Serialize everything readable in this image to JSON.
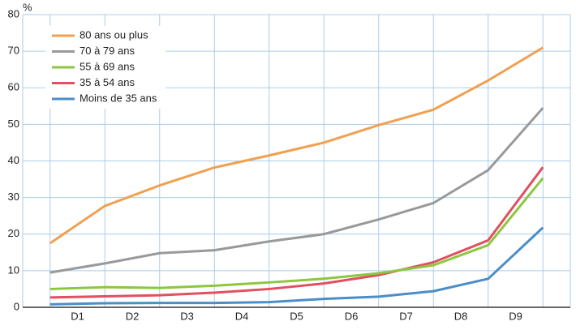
{
  "chart_data": {
    "type": "line",
    "unit": "%",
    "x": [
      0,
      1,
      2,
      3,
      4,
      5,
      6,
      7,
      8,
      9
    ],
    "xlim": [
      -0.5,
      9.5
    ],
    "xticks": [
      {
        "value": 0.5,
        "label": "D1"
      },
      {
        "value": 1.5,
        "label": "D2"
      },
      {
        "value": 2.5,
        "label": "D3"
      },
      {
        "value": 3.5,
        "label": "D4"
      },
      {
        "value": 4.5,
        "label": "D5"
      },
      {
        "value": 5.5,
        "label": "D6"
      },
      {
        "value": 6.5,
        "label": "D7"
      },
      {
        "value": 7.5,
        "label": "D8"
      },
      {
        "value": 8.5,
        "label": "D9"
      }
    ],
    "ylim": [
      0,
      80
    ],
    "yticks": [
      0,
      10,
      20,
      30,
      40,
      50,
      60,
      70,
      80
    ],
    "grid": true,
    "legend": "top-left",
    "series": [
      {
        "name": "80 ans ou plus",
        "color": "#f0a050",
        "values": [
          17.5,
          27.7,
          33.3,
          38.2,
          41.5,
          45,
          49.8,
          54,
          62,
          71
        ]
      },
      {
        "name": "70 à 79 ans",
        "color": "#999999",
        "values": [
          9.5,
          12,
          14.8,
          15.6,
          18,
          20,
          24,
          28.5,
          37.5,
          54.5
        ]
      },
      {
        "name": "55 à 69 ans",
        "color": "#8dc63f",
        "values": [
          5,
          5.5,
          5.3,
          5.9,
          6.8,
          7.8,
          9.3,
          11.5,
          17,
          35.3
        ]
      },
      {
        "name": "35 à 54 ans",
        "color": "#e05060",
        "values": [
          2.7,
          3.0,
          3.3,
          4,
          5,
          6.5,
          8.8,
          12.3,
          18.3,
          38.3
        ]
      },
      {
        "name": "Moins de 35 ans",
        "color": "#4a8ec8",
        "values": [
          0.8,
          1.1,
          1.2,
          1.2,
          1.4,
          2.3,
          2.9,
          4.4,
          7.8,
          21.8
        ]
      }
    ]
  }
}
